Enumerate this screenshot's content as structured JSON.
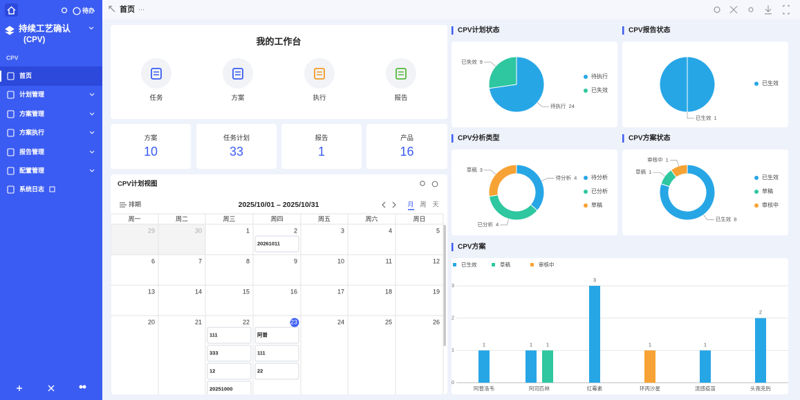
{
  "sidebar": {
    "todo": "待办",
    "title": "持续工艺确认",
    "subtitle": "(CPV)",
    "section": "CPV",
    "menu": [
      "首页",
      "计划管理",
      "方案管理",
      "方案执行",
      "报告管理",
      "配置管理",
      "系统日志"
    ]
  },
  "header": {
    "tab": "首页",
    "more": "···"
  },
  "workbench": {
    "title": "我的工作台",
    "items": [
      "任务",
      "方案",
      "执行",
      "报告"
    ]
  },
  "stats": [
    {
      "label": "方案",
      "value": 10
    },
    {
      "label": "任务计划",
      "value": 33
    },
    {
      "label": "报告",
      "value": 1
    },
    {
      "label": "产品",
      "value": 16
    }
  ],
  "calendar": {
    "title": "CPV计划视图",
    "schedule": "排期",
    "range": "2025/10/01 – 2025/10/31",
    "views": [
      "月",
      "周",
      "天"
    ],
    "weekdays": [
      "周一",
      "周二",
      "周三",
      "周四",
      "周五",
      "周六",
      "周日"
    ],
    "weeks": [
      [
        29,
        30,
        1,
        2,
        3,
        4,
        5
      ],
      [
        6,
        7,
        8,
        9,
        10,
        11,
        12
      ],
      [
        13,
        14,
        15,
        16,
        17,
        18,
        19
      ],
      [
        20,
        21,
        22,
        23,
        24,
        25,
        26
      ]
    ],
    "events": [
      {
        "day": 2,
        "items": [
          "20261011"
        ]
      },
      {
        "day": 22,
        "items": [
          "111",
          "333",
          "12",
          "20251000"
        ]
      },
      {
        "day": 23,
        "items": [
          "阿普",
          "111",
          "22"
        ]
      }
    ],
    "today": 23
  },
  "chart_data": [
    {
      "type": "pie",
      "title": "CPV计划状态",
      "categories": [
        "待执行",
        "已失效"
      ],
      "values": [
        24,
        9
      ],
      "colors": [
        "#27a6e6",
        "#2ec7a0"
      ]
    },
    {
      "type": "pie",
      "title": "CPV报告状态",
      "categories": [
        "已生效"
      ],
      "values": [
        1
      ],
      "colors": [
        "#27a6e6"
      ]
    },
    {
      "type": "donut",
      "title": "CPV分析类型",
      "categories": [
        "待分析",
        "已分析",
        "草稿"
      ],
      "values": [
        4,
        4,
        3
      ],
      "colors": [
        "#27a6e6",
        "#2ec7a0",
        "#f7a234"
      ]
    },
    {
      "type": "donut",
      "title": "CPV方案状态",
      "categories": [
        "已生效",
        "草稿",
        "审核中"
      ],
      "values": [
        8,
        1,
        1
      ],
      "colors": [
        "#27a6e6",
        "#2ec7a0",
        "#f7a234"
      ]
    },
    {
      "type": "bar",
      "title": "CPV方案",
      "categories": [
        "阿普洛韦",
        "阿司匹林",
        "红霉素",
        "环丙沙星",
        "流感疫苗",
        "头孢克肟"
      ],
      "series": [
        {
          "name": "已生效",
          "color": "#27a6e6",
          "values": [
            1,
            1,
            3,
            null,
            1,
            2
          ]
        },
        {
          "name": "草稿",
          "color": "#2ec7a0",
          "values": [
            null,
            1,
            null,
            null,
            null,
            null
          ]
        },
        {
          "name": "审核中",
          "color": "#f7a234",
          "values": [
            null,
            null,
            null,
            1,
            null,
            null
          ]
        }
      ],
      "ylim": [
        0,
        3
      ],
      "yticks": [
        0,
        1,
        2,
        3
      ],
      "grid": true
    }
  ]
}
